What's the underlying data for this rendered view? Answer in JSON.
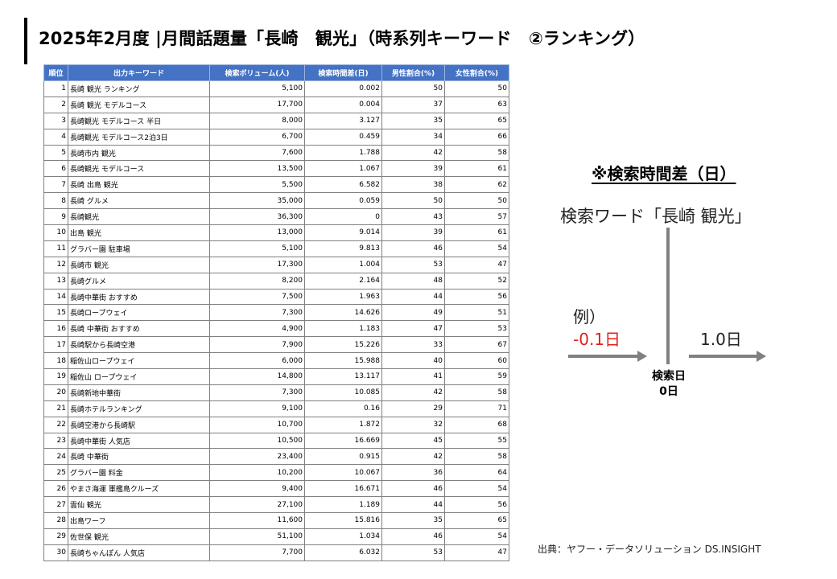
{
  "title": "2025年2月度 |月間話題量「長崎　観光」（時系列キーワード　②ランキング）",
  "table": {
    "headers": [
      "順位",
      "出力キーワード",
      "検索ボリューム(人)",
      "検索時間差(日)",
      "男性割合(%)",
      "女性割合(%)"
    ],
    "rows": [
      [
        "1",
        "長崎 観光 ランキング",
        "5,100",
        "0.002",
        "50",
        "50"
      ],
      [
        "2",
        "長崎 観光 モデルコース",
        "17,700",
        "0.004",
        "37",
        "63"
      ],
      [
        "3",
        "長崎観光 モデルコース 半日",
        "8,000",
        "3.127",
        "35",
        "65"
      ],
      [
        "4",
        "長崎観光 モデルコース2泊3日",
        "6,700",
        "0.459",
        "34",
        "66"
      ],
      [
        "5",
        "長崎市内 観光",
        "7,600",
        "1.788",
        "42",
        "58"
      ],
      [
        "6",
        "長崎観光 モデルコース",
        "13,500",
        "1.067",
        "39",
        "61"
      ],
      [
        "7",
        "長崎 出島 観光",
        "5,500",
        "6.582",
        "38",
        "62"
      ],
      [
        "8",
        "長崎 グルメ",
        "35,000",
        "0.059",
        "50",
        "50"
      ],
      [
        "9",
        "長崎観光",
        "36,300",
        "0",
        "43",
        "57"
      ],
      [
        "10",
        "出島 観光",
        "13,000",
        "9.014",
        "39",
        "61"
      ],
      [
        "11",
        "グラバー園 駐車場",
        "5,100",
        "9.813",
        "46",
        "54"
      ],
      [
        "12",
        "長崎市 観光",
        "17,300",
        "1.004",
        "53",
        "47"
      ],
      [
        "13",
        "長崎グルメ",
        "8,200",
        "2.164",
        "48",
        "52"
      ],
      [
        "14",
        "長崎中華街 おすすめ",
        "7,500",
        "1.963",
        "44",
        "56"
      ],
      [
        "15",
        "長崎ロープウェイ",
        "7,300",
        "14.626",
        "49",
        "51"
      ],
      [
        "16",
        "長崎 中華街 おすすめ",
        "4,900",
        "1.183",
        "47",
        "53"
      ],
      [
        "17",
        "長崎駅から長崎空港",
        "7,900",
        "15.226",
        "33",
        "67"
      ],
      [
        "18",
        "稲佐山ロープウェイ",
        "6,000",
        "15.988",
        "40",
        "60"
      ],
      [
        "19",
        "稲佐山 ロープウェイ",
        "14,800",
        "13.117",
        "41",
        "59"
      ],
      [
        "20",
        "長崎新地中華街",
        "7,300",
        "10.085",
        "42",
        "58"
      ],
      [
        "21",
        "長崎ホテルランキング",
        "9,100",
        "0.16",
        "29",
        "71"
      ],
      [
        "22",
        "長崎空港から長崎駅",
        "10,700",
        "1.872",
        "32",
        "68"
      ],
      [
        "23",
        "長崎中華街 人気店",
        "10,500",
        "16.669",
        "45",
        "55"
      ],
      [
        "24",
        "長崎 中華街",
        "23,400",
        "0.915",
        "42",
        "58"
      ],
      [
        "25",
        "グラバー園 料金",
        "10,200",
        "10.067",
        "36",
        "64"
      ],
      [
        "26",
        "やまさ海運 軍艦島クルーズ",
        "9,400",
        "16.671",
        "46",
        "54"
      ],
      [
        "27",
        "雲仙 観光",
        "27,100",
        "1.189",
        "44",
        "56"
      ],
      [
        "28",
        "出島ワーフ",
        "11,600",
        "15.816",
        "35",
        "65"
      ],
      [
        "29",
        "佐世保 観光",
        "51,100",
        "1.034",
        "46",
        "54"
      ],
      [
        "30",
        "長崎ちゃんぽん 人気店",
        "7,700",
        "6.032",
        "53",
        "47"
      ]
    ]
  },
  "note": {
    "title": "※検索時間差（日）",
    "keyword_label": "検索ワード「長崎 観光」",
    "example_label": "例）",
    "negative_value": "-0.1日",
    "positive_value": "1.0日",
    "search_day_label": "検索日",
    "search_day_value": "0日",
    "negative_color": "#e02020"
  },
  "source": "出典：ヤフー・データソリューション DS.INSIGHT"
}
